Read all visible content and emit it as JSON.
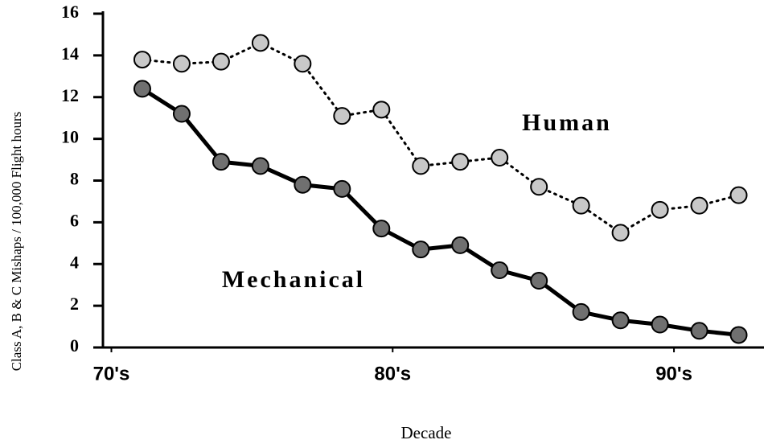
{
  "chart_data": {
    "type": "line",
    "x_label": "Decade",
    "y_label": "Class A, B & C Mishaps / 100,000 Flight hours",
    "annotations": [
      "Human",
      "Mechanical"
    ],
    "x": [
      1971.1,
      1972.5,
      1973.9,
      1975.3,
      1976.8,
      1978.2,
      1979.6,
      1981.0,
      1982.4,
      1983.8,
      1985.2,
      1986.7,
      1988.1,
      1989.5,
      1990.9,
      1992.3
    ],
    "series": [
      {
        "name": "Human",
        "color": "#c8c8c8",
        "style": "dotted",
        "values": [
          13.8,
          13.6,
          13.7,
          14.6,
          13.6,
          11.1,
          11.4,
          8.7,
          8.9,
          9.1,
          7.7,
          6.8,
          5.5,
          6.6,
          6.8,
          7.3
        ]
      },
      {
        "name": "Mechanical",
        "color": "#707070",
        "style": "solid",
        "values": [
          12.4,
          11.2,
          8.9,
          8.7,
          7.8,
          7.6,
          5.7,
          4.7,
          4.9,
          3.7,
          3.2,
          1.7,
          1.3,
          1.1,
          0.8,
          0.6
        ]
      }
    ],
    "xlim": [
      1969.7,
      1993.2
    ],
    "xticks": [
      {
        "value": 1970,
        "label": "70's"
      },
      {
        "value": 1980,
        "label": "80's"
      },
      {
        "value": 1990,
        "label": "90's"
      }
    ],
    "ylim": [
      0,
      16
    ],
    "yticks": [
      0,
      2,
      4,
      6,
      8,
      10,
      12,
      14,
      16
    ],
    "grid": false
  }
}
